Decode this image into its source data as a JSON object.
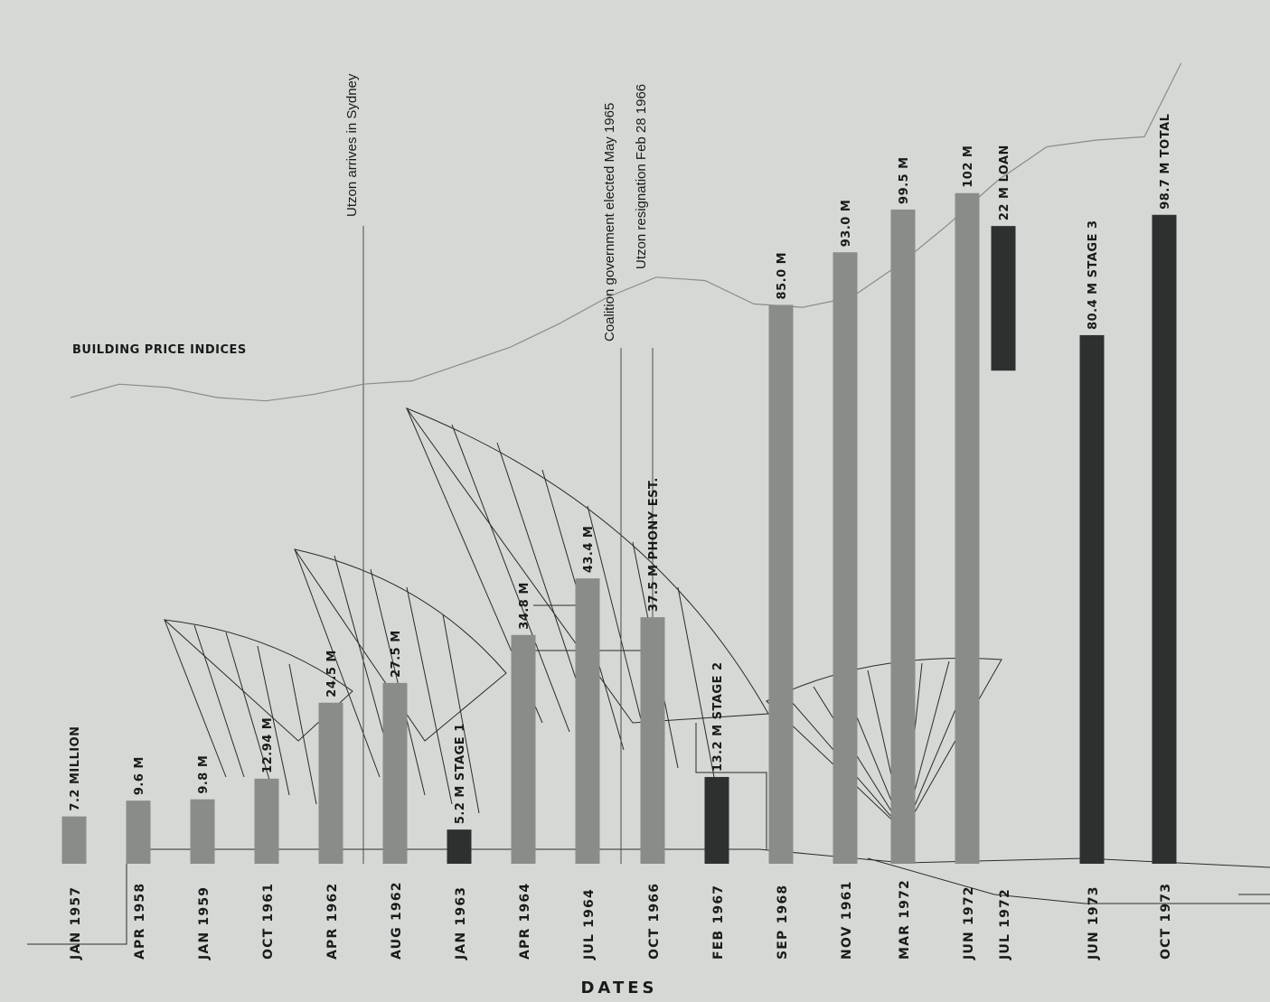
{
  "chart_data": {
    "type": "bar",
    "xlabel": "DATES",
    "categories": [
      "JAN 1957",
      "APR 1958",
      "JAN 1959",
      "OCT 1961",
      "APR 1962",
      "AUG 1962",
      "JAN 1963",
      "APR 1964",
      "JUL 1964",
      "OCT 1966",
      "FEB 1967",
      "SEP 1968",
      "NOV 1961",
      "MAR 1972",
      "JUN 1972",
      "JUL 1972",
      "JUN 1973",
      "OCT 1973"
    ],
    "series": [
      {
        "values": [
          7.2,
          9.6,
          9.8,
          12.94,
          24.5,
          27.5,
          5.2,
          34.8,
          43.4,
          37.5,
          13.2,
          85.0,
          93.0,
          99.5,
          102,
          22,
          80.4,
          98.7
        ]
      }
    ],
    "bar_labels": [
      "7.2 MILLION",
      "9.6 M",
      "9.8 M",
      "12.94 M",
      "24.5 M",
      "27.5 M",
      "5.2 M",
      "34.8 M",
      "43.4 M",
      "37.5 M",
      "13.2 M",
      "85.0 M",
      "93.0 M",
      "99.5 M",
      "102 M",
      "22 M",
      "80.4 M",
      "98.7 M"
    ],
    "bar_tags": [
      "",
      "",
      "",
      "",
      "",
      "",
      "STAGE 1",
      "",
      "",
      "PHONY EST.",
      "STAGE 2",
      "",
      "",
      "",
      "",
      "LOAN",
      "STAGE 3",
      "TOTAL"
    ],
    "bar_tones": [
      "light",
      "light",
      "light",
      "light",
      "light",
      "light",
      "dark",
      "light",
      "light",
      "light",
      "dark",
      "light",
      "light",
      "light",
      "light",
      "dark",
      "dark",
      "dark"
    ],
    "float_base": [
      0,
      0,
      0,
      0,
      0,
      0,
      0,
      0,
      0,
      0,
      0,
      0,
      0,
      0,
      0,
      75,
      0,
      0
    ],
    "ylim": [
      0,
      130
    ],
    "line": {
      "name": "BUILDING PRICE INDICES",
      "x": [
        0,
        0.8,
        1.6,
        2.4,
        3.2,
        4,
        4.8,
        5.6,
        6.4,
        7.2,
        8,
        8.8,
        9.6,
        10.4,
        11.2,
        12,
        12.8,
        13.6,
        14.4,
        15.2,
        16,
        16.8,
        17.6,
        18.2
      ],
      "y": [
        30,
        34,
        33,
        30,
        29,
        31,
        34,
        35,
        40,
        45,
        52,
        60,
        66,
        65,
        58,
        57,
        60,
        70,
        82,
        95,
        105,
        107,
        108,
        130
      ]
    },
    "annotations": [
      "Utzon arrives in Sydney",
      "Coalition government elected May 1965",
      "Utzon resignation Feb 28 1966"
    ],
    "colors": {
      "light_bar": "#8a8c8a",
      "dark_bar": "#2e302f",
      "background": "#d5d9d5",
      "line": "#8a8c8a"
    }
  }
}
